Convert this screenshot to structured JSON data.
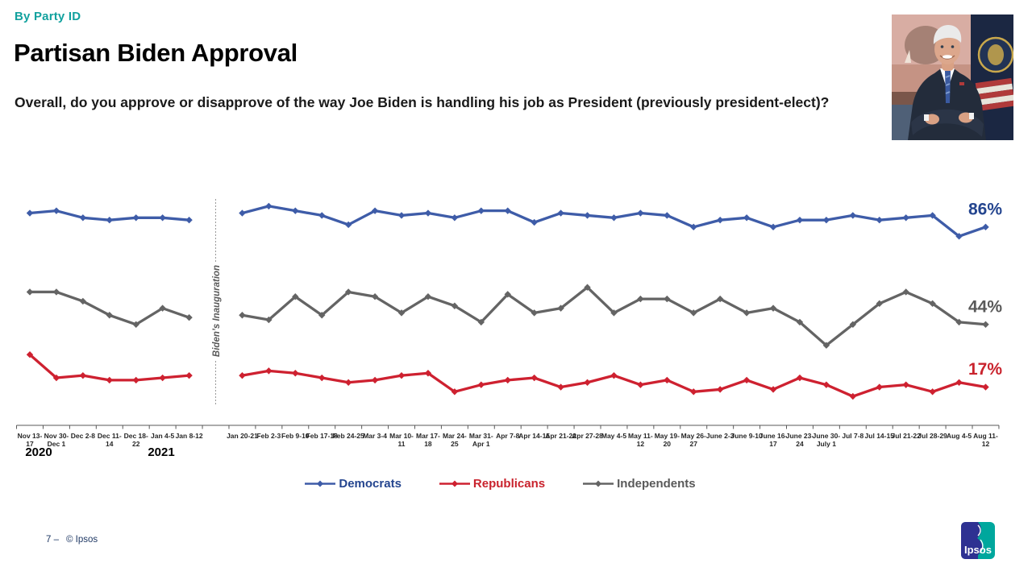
{
  "slide": {
    "kicker": "By Party ID",
    "title": "Partisan Biden Approval",
    "question": "Overall, do you approve or disapprove of the way Joe Biden is handling his job as President (previously president-elect)?",
    "footer": {
      "page": "7 –",
      "copyright": "© Ipsos"
    },
    "logo_text": "Ipsos"
  },
  "colors": {
    "kicker_teal": "#12A19E",
    "axis": "#595959",
    "footer_navy": "#1F3864",
    "logo_indigo": "#2E3192",
    "logo_teal": "#00A79D",
    "annotation_gray": "#595959"
  },
  "chart_data": {
    "type": "line",
    "title": "",
    "xlabel": "",
    "ylabel": "",
    "ylim": [
      0,
      100
    ],
    "grid": false,
    "legend_position": "bottom",
    "categories": [
      "Nov 13-\n17",
      "Nov 30-\nDec 1",
      "Dec 2-8",
      "Dec 11-\n14",
      "Dec 18-\n22",
      "Jan 4-5",
      "Jan 8-12",
      "",
      "Jan 20-21",
      "Feb 2-3",
      "Feb 9-10",
      "Feb 17-18",
      "Feb 24-25",
      "Mar 3-4",
      "Mar 10-\n11",
      "Mar 17-\n18",
      "Mar 24-\n25",
      "Mar 31-\nApr 1",
      "Apr 7-8",
      "Apr 14-15",
      "Apr 21-22",
      "Apr 27-28",
      "May 4-5",
      "May 11-\n12",
      "May 19-\n20",
      "May 26-\n27",
      "June 2-3",
      "June 9-10",
      "June 16-\n17",
      "June 23-\n24",
      "June 30-\nJuly 1",
      "Jul 7-8",
      "Jul 14-15",
      "Jul 21-22",
      "Jul 28-29",
      "Aug 4-5",
      "Aug 11-\n12"
    ],
    "annotation": {
      "label": "Biden’s Inauguration",
      "index": 7
    },
    "years": [
      {
        "label": "2020"
      },
      {
        "label": "2021"
      }
    ],
    "series": [
      {
        "name": "Democrats",
        "color": "#3E5CA8",
        "text_color": "#24458F",
        "end_label": "86%",
        "values": [
          92,
          93,
          90,
          89,
          90,
          90,
          89,
          null,
          92,
          95,
          93,
          91,
          87,
          93,
          91,
          92,
          90,
          93,
          93,
          88,
          92,
          91,
          90,
          92,
          91,
          86,
          89,
          90,
          86,
          89,
          89,
          91,
          89,
          90,
          91,
          82,
          86
        ]
      },
      {
        "name": "Republicans",
        "color": "#CE2130",
        "text_color": "#C9232D",
        "end_label": "17%",
        "values": [
          31,
          21,
          22,
          20,
          20,
          21,
          22,
          null,
          22,
          24,
          23,
          21,
          19,
          20,
          22,
          23,
          15,
          18,
          20,
          21,
          17,
          19,
          22,
          18,
          20,
          15,
          16,
          20,
          16,
          21,
          18,
          13,
          17,
          18,
          15,
          19,
          17
        ]
      },
      {
        "name": "Independents",
        "color": "#646464",
        "text_color": "#595959",
        "end_label": "44%",
        "values": [
          58,
          58,
          54,
          48,
          44,
          51,
          47,
          null,
          48,
          46,
          56,
          48,
          58,
          56,
          49,
          56,
          52,
          45,
          57,
          49,
          51,
          60,
          49,
          55,
          55,
          49,
          55,
          49,
          51,
          45,
          35,
          44,
          53,
          58,
          53,
          45,
          44
        ]
      }
    ]
  }
}
